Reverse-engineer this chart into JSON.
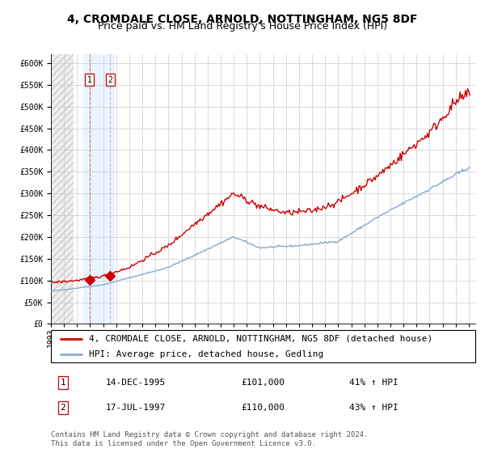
{
  "title": "4, CROMDALE CLOSE, ARNOLD, NOTTINGHAM, NG5 8DF",
  "subtitle": "Price paid vs. HM Land Registry's House Price Index (HPI)",
  "yticks": [
    0,
    50000,
    100000,
    150000,
    200000,
    250000,
    300000,
    350000,
    400000,
    450000,
    500000,
    550000,
    600000
  ],
  "xlim_start": 1993.0,
  "xlim_end": 2025.5,
  "ylim": [
    0,
    620000
  ],
  "grid_color": "#cccccc",
  "sale1_date": 1995.95,
  "sale1_price": 101000,
  "sale1_label": "1",
  "sale2_date": 1997.54,
  "sale2_price": 110000,
  "sale2_label": "2",
  "hatch_end": 1994.75,
  "blue_shade_x1": 1995.5,
  "blue_shade_x2": 1997.9,
  "line_color_red": "#cc0000",
  "line_color_blue": "#88aacc",
  "marker_color": "#cc0000",
  "vline_red_color": "#dd6666",
  "vline_blue_color": "#aabbdd",
  "legend_entry1": "4, CROMDALE CLOSE, ARNOLD, NOTTINGHAM, NG5 8DF (detached house)",
  "legend_entry2": "HPI: Average price, detached house, Gedling",
  "table_rows": [
    {
      "num": "1",
      "date": "14-DEC-1995",
      "price": "£101,000",
      "hpi": "41% ↑ HPI"
    },
    {
      "num": "2",
      "date": "17-JUL-1997",
      "price": "£110,000",
      "hpi": "43% ↑ HPI"
    }
  ],
  "footnote": "Contains HM Land Registry data © Crown copyright and database right 2024.\nThis data is licensed under the Open Government Licence v3.0.",
  "title_fontsize": 10,
  "subtitle_fontsize": 9,
  "tick_fontsize": 7,
  "legend_fontsize": 8,
  "table_fontsize": 8,
  "footnote_fontsize": 6.5
}
